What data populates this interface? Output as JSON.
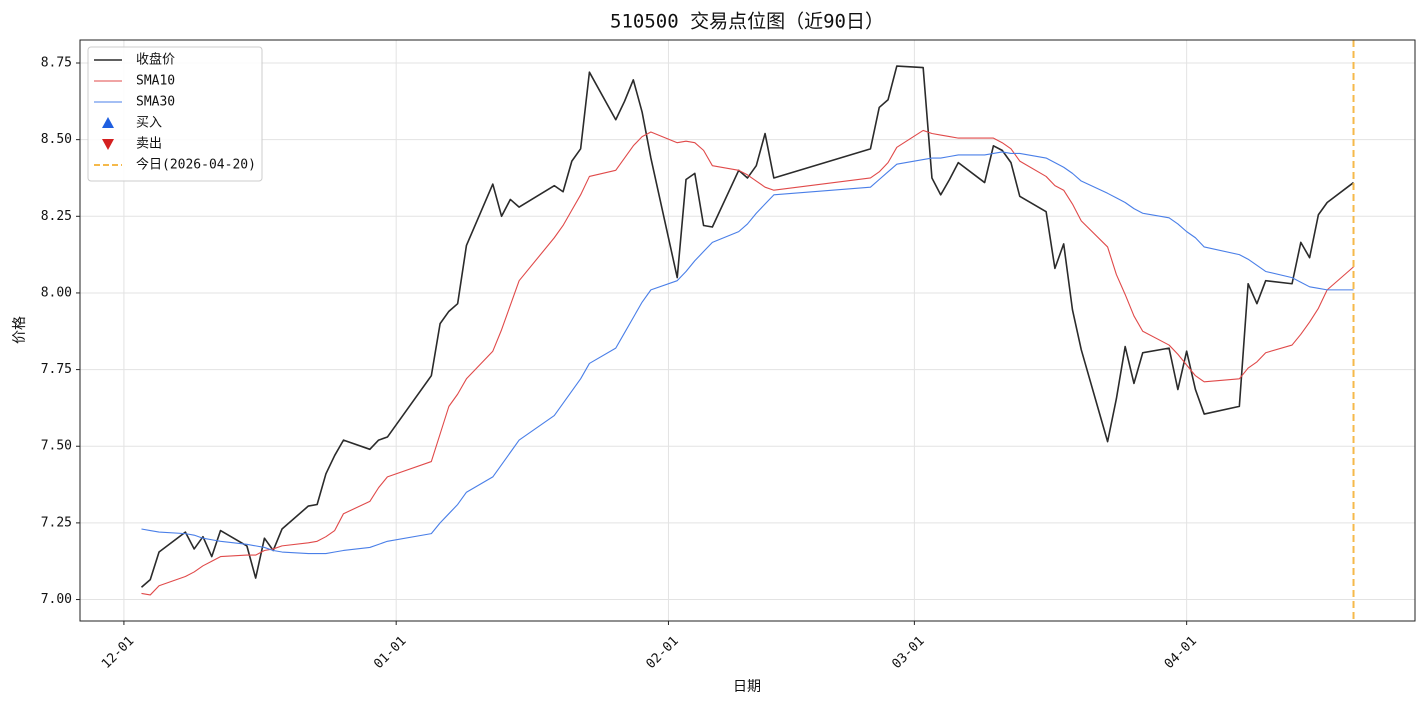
{
  "chart_data": {
    "type": "line",
    "title": "510500 交易点位图（近90日）",
    "x_label": "日期",
    "y_label": "价格",
    "x": [
      "12-03",
      "12-04",
      "12-05",
      "12-08",
      "12-09",
      "12-10",
      "12-11",
      "12-12",
      "12-15",
      "12-16",
      "12-17",
      "12-18",
      "12-19",
      "12-22",
      "12-23",
      "12-24",
      "12-25",
      "12-26",
      "12-29",
      "12-30",
      "12-31",
      "01-05",
      "01-06",
      "01-07",
      "01-08",
      "01-09",
      "01-12",
      "01-13",
      "01-14",
      "01-15",
      "01-19",
      "01-20",
      "01-21",
      "01-22",
      "01-23",
      "01-26",
      "01-27",
      "01-28",
      "01-29",
      "01-30",
      "02-02",
      "02-03",
      "02-04",
      "02-05",
      "02-06",
      "02-09",
      "02-10",
      "02-11",
      "02-12",
      "02-13",
      "02-24",
      "02-25",
      "02-26",
      "02-27",
      "03-02",
      "03-03",
      "03-04",
      "03-05",
      "03-06",
      "03-09",
      "03-10",
      "03-11",
      "03-12",
      "03-13",
      "03-16",
      "03-17",
      "03-18",
      "03-19",
      "03-20",
      "03-23",
      "03-24",
      "03-25",
      "03-26",
      "03-27",
      "03-30",
      "03-31",
      "04-01",
      "04-02",
      "04-03",
      "04-07",
      "04-08",
      "04-09",
      "04-10",
      "04-13",
      "04-14",
      "04-15",
      "04-16",
      "04-17",
      "04-20"
    ],
    "series": [
      {
        "name": "收盘价",
        "color": "#2b2b2b",
        "width": 1.6,
        "values": [
          7.04,
          7.065,
          7.155,
          7.22,
          7.165,
          7.205,
          7.14,
          7.225,
          7.175,
          7.07,
          7.2,
          7.16,
          7.23,
          7.305,
          7.31,
          7.41,
          7.47,
          7.52,
          7.49,
          7.52,
          7.53,
          7.73,
          7.9,
          7.94,
          7.965,
          8.155,
          8.355,
          8.25,
          8.305,
          8.28,
          8.35,
          8.33,
          8.43,
          8.47,
          8.72,
          8.565,
          8.625,
          8.695,
          8.59,
          8.44,
          8.05,
          8.37,
          8.39,
          8.22,
          8.215,
          8.4,
          8.375,
          8.415,
          8.52,
          8.375,
          8.47,
          8.605,
          8.63,
          8.74,
          8.735,
          8.375,
          8.32,
          8.37,
          8.425,
          8.36,
          8.48,
          8.465,
          8.425,
          8.315,
          8.265,
          8.08,
          8.16,
          7.945,
          7.815,
          7.515,
          7.655,
          7.825,
          7.705,
          7.805,
          7.82,
          7.685,
          7.81,
          7.685,
          7.605,
          7.63,
          8.03,
          7.965,
          8.04,
          8.03,
          8.165,
          8.115,
          8.255,
          8.295,
          8.36
        ]
      },
      {
        "name": "SMA10",
        "color": "#e04a4a",
        "width": 1.1,
        "values": [
          7.02,
          7.015,
          7.045,
          7.075,
          7.09,
          7.11,
          7.125,
          7.14,
          7.145,
          7.145,
          7.16,
          7.165,
          7.175,
          7.185,
          7.19,
          7.205,
          7.225,
          7.28,
          7.32,
          7.365,
          7.4,
          7.45,
          7.54,
          7.63,
          7.67,
          7.72,
          7.81,
          7.88,
          7.96,
          8.04,
          8.18,
          8.22,
          8.27,
          8.32,
          8.38,
          8.4,
          8.44,
          8.48,
          8.51,
          8.525,
          8.49,
          8.495,
          8.49,
          8.465,
          8.415,
          8.4,
          8.385,
          8.365,
          8.345,
          8.335,
          8.375,
          8.395,
          8.425,
          8.475,
          8.53,
          8.52,
          8.515,
          8.51,
          8.505,
          8.505,
          8.505,
          8.49,
          8.47,
          8.43,
          8.38,
          8.35,
          8.335,
          8.29,
          8.235,
          8.15,
          8.06,
          7.995,
          7.925,
          7.875,
          7.83,
          7.8,
          7.765,
          7.73,
          7.71,
          7.72,
          7.755,
          7.775,
          7.805,
          7.83,
          7.865,
          7.905,
          7.95,
          8.01,
          8.085
        ]
      },
      {
        "name": "SMA30",
        "color": "#4a7fe8",
        "width": 1.1,
        "values": [
          7.23,
          7.225,
          7.22,
          7.215,
          7.21,
          7.2,
          7.195,
          7.19,
          7.18,
          7.175,
          7.17,
          7.16,
          7.155,
          7.15,
          7.15,
          7.15,
          7.155,
          7.16,
          7.17,
          7.18,
          7.19,
          7.215,
          7.25,
          7.28,
          7.31,
          7.35,
          7.4,
          7.44,
          7.48,
          7.52,
          7.6,
          7.64,
          7.68,
          7.72,
          7.77,
          7.82,
          7.87,
          7.92,
          7.97,
          8.01,
          8.04,
          8.07,
          8.105,
          8.135,
          8.165,
          8.2,
          8.225,
          8.26,
          8.29,
          8.32,
          8.345,
          8.37,
          8.395,
          8.42,
          8.435,
          8.44,
          8.44,
          8.445,
          8.45,
          8.45,
          8.455,
          8.46,
          8.455,
          8.455,
          8.44,
          8.425,
          8.41,
          8.39,
          8.365,
          8.325,
          8.31,
          8.295,
          8.275,
          8.26,
          8.245,
          8.225,
          8.2,
          8.18,
          8.15,
          8.125,
          8.11,
          8.09,
          8.07,
          8.05,
          8.035,
          8.02,
          8.015,
          8.01,
          8.01
        ]
      }
    ],
    "markers": [
      {
        "name": "买入",
        "color": "#1f5fe0",
        "shape": "up"
      },
      {
        "name": "卖出",
        "color": "#d42020",
        "shape": "down"
      }
    ],
    "today_line": {
      "x": "04-20",
      "label": "今日(2026-04-20)",
      "color": "#f5b94a"
    },
    "xlim": [
      "11-26",
      "04-27"
    ],
    "xticks": [
      "12-01",
      "01-01",
      "02-01",
      "03-01",
      "04-01"
    ],
    "ylim": [
      6.93,
      8.825
    ],
    "yticks": [
      {
        "value": 7,
        "label": "7.00"
      },
      {
        "value": 7.25,
        "label": "7.25"
      },
      {
        "value": 7.5,
        "label": "7.50"
      },
      {
        "value": 7.75,
        "label": "7.75"
      },
      {
        "value": 8,
        "label": "8.00"
      },
      {
        "value": 8.25,
        "label": "8.25"
      },
      {
        "value": 8.5,
        "label": "8.50"
      },
      {
        "value": 8.75,
        "label": "8.75"
      }
    ],
    "grid": true,
    "legend": "upper-left"
  }
}
